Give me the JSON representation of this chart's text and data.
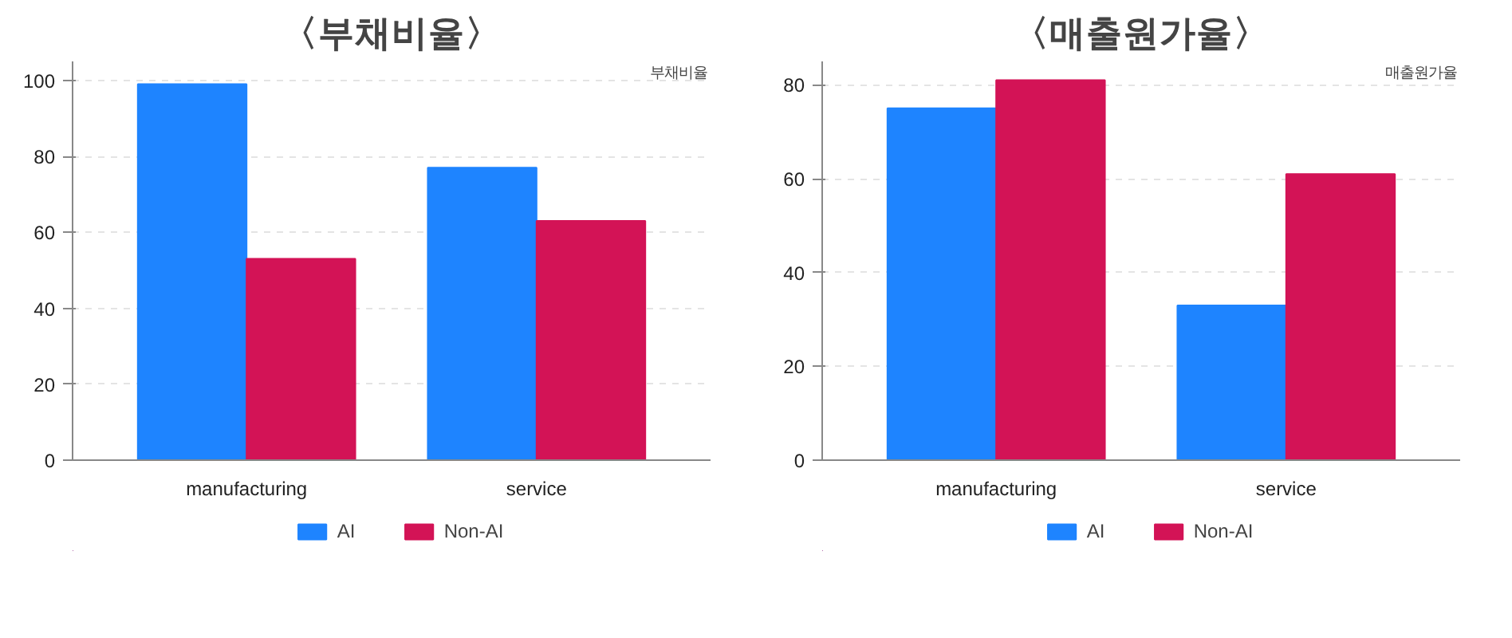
{
  "chart_data": [
    {
      "type": "bar",
      "title": "〈부채비율〉",
      "ylabel": "부채비율",
      "categories": [
        "manufacturing",
        "service"
      ],
      "series": [
        {
          "name": "AI",
          "color": "#1e84ff",
          "values": [
            99,
            77
          ]
        },
        {
          "name": "Non-AI",
          "color": "#d31356",
          "values": [
            53,
            63
          ]
        }
      ],
      "ylim": [
        0,
        105
      ],
      "yticks": [
        0,
        20,
        40,
        60,
        80,
        100
      ],
      "grid": "y",
      "legend": "bottom"
    },
    {
      "type": "bar",
      "title": "〈매출원가율〉",
      "ylabel": "매출원가율",
      "categories": [
        "manufacturing",
        "service"
      ],
      "series": [
        {
          "name": "AI",
          "color": "#1e84ff",
          "values": [
            75,
            33
          ]
        },
        {
          "name": "Non-AI",
          "color": "#d31356",
          "values": [
            81,
            61
          ]
        }
      ],
      "ylim": [
        0,
        85
      ],
      "yticks": [
        0,
        20,
        40,
        60,
        80
      ],
      "grid": "y",
      "legend": "bottom"
    }
  ]
}
